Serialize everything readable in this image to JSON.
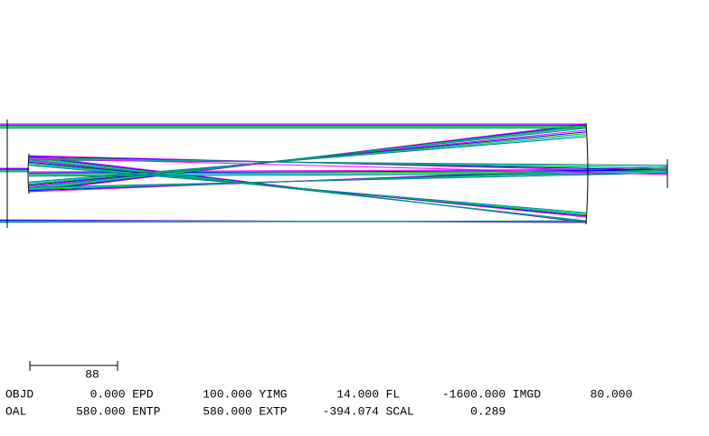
{
  "scale_bar": {
    "label": "88"
  },
  "parameters": [
    [
      {
        "label": "OBJD",
        "value": "0.000"
      },
      {
        "label": "EPD",
        "value": "100.000"
      },
      {
        "label": "YIMG",
        "value": "14.000"
      },
      {
        "label": "FL",
        "value": "-1600.000"
      },
      {
        "label": "IMGD",
        "value": "80.000"
      }
    ],
    [
      {
        "label": "OAL",
        "value": "580.000"
      },
      {
        "label": "ENTP",
        "value": "580.000"
      },
      {
        "label": "EXTP",
        "value": "-394.074"
      },
      {
        "label": "SCAL",
        "value": "0.289"
      }
    ]
  ]
}
